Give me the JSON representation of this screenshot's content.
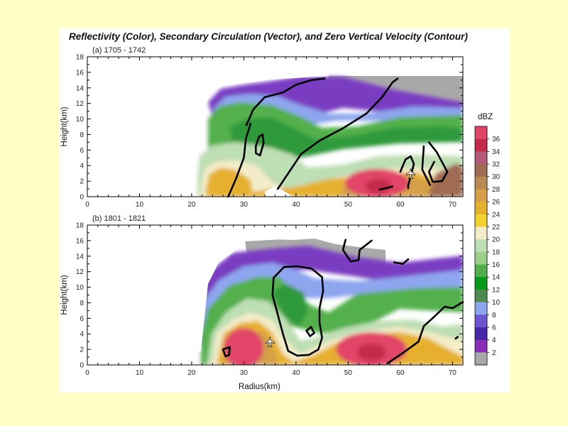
{
  "figure": {
    "title": "Reflectivity (Color), Secondary Circulation (Vector), and Zero Vertical Velocity (Contour)"
  },
  "chart_data": [
    {
      "type": "heatmap",
      "panel_label": "(a) 1705 - 1742",
      "xlabel": "",
      "ylabel": "Height(km)",
      "xlim": [
        0,
        72
      ],
      "ylim": [
        0,
        18
      ],
      "x_ticks": [
        "0",
        "10",
        "20",
        "30",
        "40",
        "50",
        "60",
        "70"
      ],
      "y_ticks": [
        "0",
        "2",
        "4",
        "6",
        "8",
        "10",
        "12",
        "14",
        "16",
        "18"
      ],
      "aircraft_marker": {
        "x": 62,
        "y": 3
      },
      "zero_w_contours": [
        [
          [
            30.5,
            9.2
          ],
          [
            31.8,
            11.2
          ],
          [
            34,
            12.8
          ],
          [
            37.5,
            13.4
          ],
          [
            40,
            14.4
          ],
          [
            43,
            15
          ],
          [
            45.5,
            15.2
          ]
        ],
        [
          [
            27,
            0
          ],
          [
            28.5,
            2.3
          ],
          [
            30,
            5
          ],
          [
            30.4,
            7.5
          ],
          [
            31.3,
            9.4
          ]
        ],
        [
          [
            36.5,
            1
          ],
          [
            38.5,
            3
          ],
          [
            41,
            5.5
          ],
          [
            44.5,
            7.2
          ],
          [
            49,
            8.8
          ],
          [
            53.5,
            10.7
          ],
          [
            56.5,
            12.8
          ],
          [
            58.5,
            14.7
          ],
          [
            59.5,
            15.2
          ]
        ],
        [
          [
            32.3,
            6.5
          ],
          [
            32.9,
            7.7
          ],
          [
            33.6,
            8
          ],
          [
            33.8,
            6.9
          ],
          [
            33.1,
            5.3
          ],
          [
            32.3,
            5.6
          ],
          [
            32.3,
            6.5
          ]
        ],
        [
          [
            60,
            3.2
          ],
          [
            61,
            4.8
          ],
          [
            62,
            5.2
          ],
          [
            62.6,
            4.2
          ],
          [
            62,
            2.6
          ],
          [
            61.5,
            1.5
          ],
          [
            61.5,
            1.1
          ]
        ],
        [
          [
            65.5,
            7
          ],
          [
            67,
            5.7
          ],
          [
            69,
            3.2
          ],
          [
            68,
            2
          ],
          [
            66.2,
            1.9
          ],
          [
            65.5,
            3.2
          ],
          [
            66.5,
            4.5
          ]
        ],
        [
          [
            64.5,
            6.5
          ],
          [
            64.2,
            3.5
          ],
          [
            65.7,
            1.5
          ]
        ],
        [
          [
            56,
            0.9
          ],
          [
            58.5,
            1.3
          ]
        ]
      ]
    },
    {
      "type": "heatmap",
      "panel_label": "(b) 1801 - 1821",
      "xlabel": "Radius(km)",
      "ylabel": "Height(km)",
      "xlim": [
        0,
        72
      ],
      "ylim": [
        0,
        18
      ],
      "x_ticks": [
        "0",
        "10",
        "20",
        "30",
        "40",
        "50",
        "60",
        "70"
      ],
      "y_ticks": [
        "0",
        "2",
        "4",
        "6",
        "8",
        "10",
        "12",
        "14",
        "16",
        "18"
      ],
      "aircraft_marker": {
        "x": 35,
        "y": 3
      },
      "zero_w_contours": [
        [
          [
            38.5,
            1.8
          ],
          [
            37.5,
            4
          ],
          [
            36.5,
            6.5
          ],
          [
            35.5,
            9
          ],
          [
            35.7,
            11.2
          ],
          [
            37.7,
            12.6
          ],
          [
            40.2,
            12.7
          ],
          [
            43,
            12.4
          ],
          [
            45,
            11.3
          ],
          [
            45.2,
            9.5
          ],
          [
            44.5,
            7.3
          ],
          [
            44.5,
            5.5
          ],
          [
            45,
            3.5
          ],
          [
            44.3,
            2
          ],
          [
            42.5,
            1.3
          ],
          [
            40.2,
            1.2
          ],
          [
            38.5,
            1.8
          ]
        ],
        [
          [
            49.5,
            16.1
          ],
          [
            49,
            14.8
          ],
          [
            50.5,
            13.3
          ],
          [
            52,
            13.5
          ],
          [
            52.2,
            14.8
          ],
          [
            54.5,
            16
          ]
        ],
        [
          [
            26,
            2
          ],
          [
            27.3,
            2.3
          ],
          [
            27.2,
            1.3
          ],
          [
            26.5,
            1.1
          ],
          [
            26,
            2
          ]
        ],
        [
          [
            42,
            4.4
          ],
          [
            42.7,
            3.7
          ],
          [
            43.5,
            4.1
          ],
          [
            42.9,
            4.9
          ],
          [
            42,
            4.4
          ]
        ],
        [
          [
            58.8,
            13.2
          ],
          [
            60.5,
            13
          ],
          [
            61.5,
            13.6
          ]
        ],
        [
          [
            57.5,
            0.2
          ],
          [
            60.4,
            1.5
          ],
          [
            63.5,
            3
          ],
          [
            64.5,
            5
          ],
          [
            66.5,
            6.2
          ],
          [
            68.5,
            7.5
          ],
          [
            70,
            7.3
          ],
          [
            72,
            8.1
          ]
        ],
        [
          [
            70.6,
            3.4
          ],
          [
            71,
            3.6
          ]
        ]
      ]
    }
  ],
  "colorbar": {
    "title": "dBZ",
    "labels": [
      "36",
      "34",
      "32",
      "30",
      "28",
      "26",
      "24",
      "22",
      "20",
      "18",
      "16",
      "14",
      "12",
      "10",
      "8",
      "6",
      "4",
      "2"
    ],
    "colors": [
      "#e14467",
      "#c32b48",
      "#b45b7b",
      "#a06b53",
      "#b88952",
      "#d49f47",
      "#e6b02d",
      "#f2d231",
      "#f3ecc8",
      "#bedeb4",
      "#9ccf8a",
      "#52b04c",
      "#069a18",
      "#4c8a4e",
      "#8ea6ef",
      "#6d55cd",
      "#4628a8",
      "#8c2db7",
      "#a9a9a9"
    ]
  }
}
